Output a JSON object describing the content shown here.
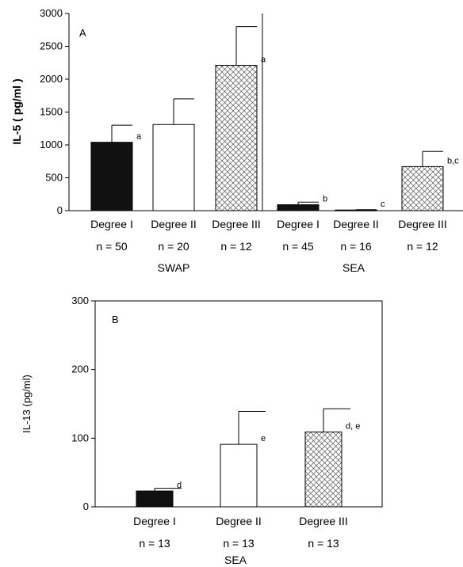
{
  "chart_data": [
    {
      "type": "bar",
      "panel_label": "A",
      "ylabel": "IL-5 ( pg/ml )",
      "ylim": [
        0,
        3000
      ],
      "yticks": [
        "0",
        "500",
        "1000",
        "1500",
        "2000",
        "2500",
        "3000"
      ],
      "groups": [
        {
          "name": "SWAP",
          "bars": [
            {
              "category": "Degree I",
              "n": "n = 50",
              "value": 1040,
              "error": 260,
              "label": "a",
              "fill": "solid"
            },
            {
              "category": "Degree II",
              "n": "n = 20",
              "value": 1310,
              "error": 390,
              "label": "",
              "fill": "white"
            },
            {
              "category": "Degree III",
              "n": "n = 12",
              "value": 2210,
              "error": 590,
              "label": "a",
              "fill": "hatch"
            }
          ]
        },
        {
          "name": "SEA",
          "bars": [
            {
              "category": "Degree I",
              "n": "n = 45",
              "value": 90,
              "error": 40,
              "label": "b",
              "fill": "solid"
            },
            {
              "category": "Degree II",
              "n": "n = 16",
              "value": 10,
              "error": 5,
              "label": "c",
              "fill": "white"
            },
            {
              "category": "Degree III",
              "n": "n = 12",
              "value": 670,
              "error": 230,
              "label": "b,c",
              "fill": "hatch"
            }
          ]
        }
      ]
    },
    {
      "type": "bar",
      "panel_label": "B",
      "ylabel": "IL-13 (pg/ml)",
      "ylim": [
        0,
        300
      ],
      "yticks": [
        "0",
        "100",
        "200",
        "300"
      ],
      "groups": [
        {
          "name": "SEA",
          "bars": [
            {
              "category": "Degree I",
              "n": "n = 13",
              "value": 23,
              "error": 4,
              "label": "d",
              "fill": "solid"
            },
            {
              "category": "Degree II",
              "n": "n = 13",
              "value": 91,
              "error": 48,
              "label": "e",
              "fill": "white"
            },
            {
              "category": "Degree III",
              "n": "n = 13",
              "value": 109,
              "error": 34,
              "label": "d, e",
              "fill": "hatch"
            }
          ]
        }
      ]
    }
  ]
}
